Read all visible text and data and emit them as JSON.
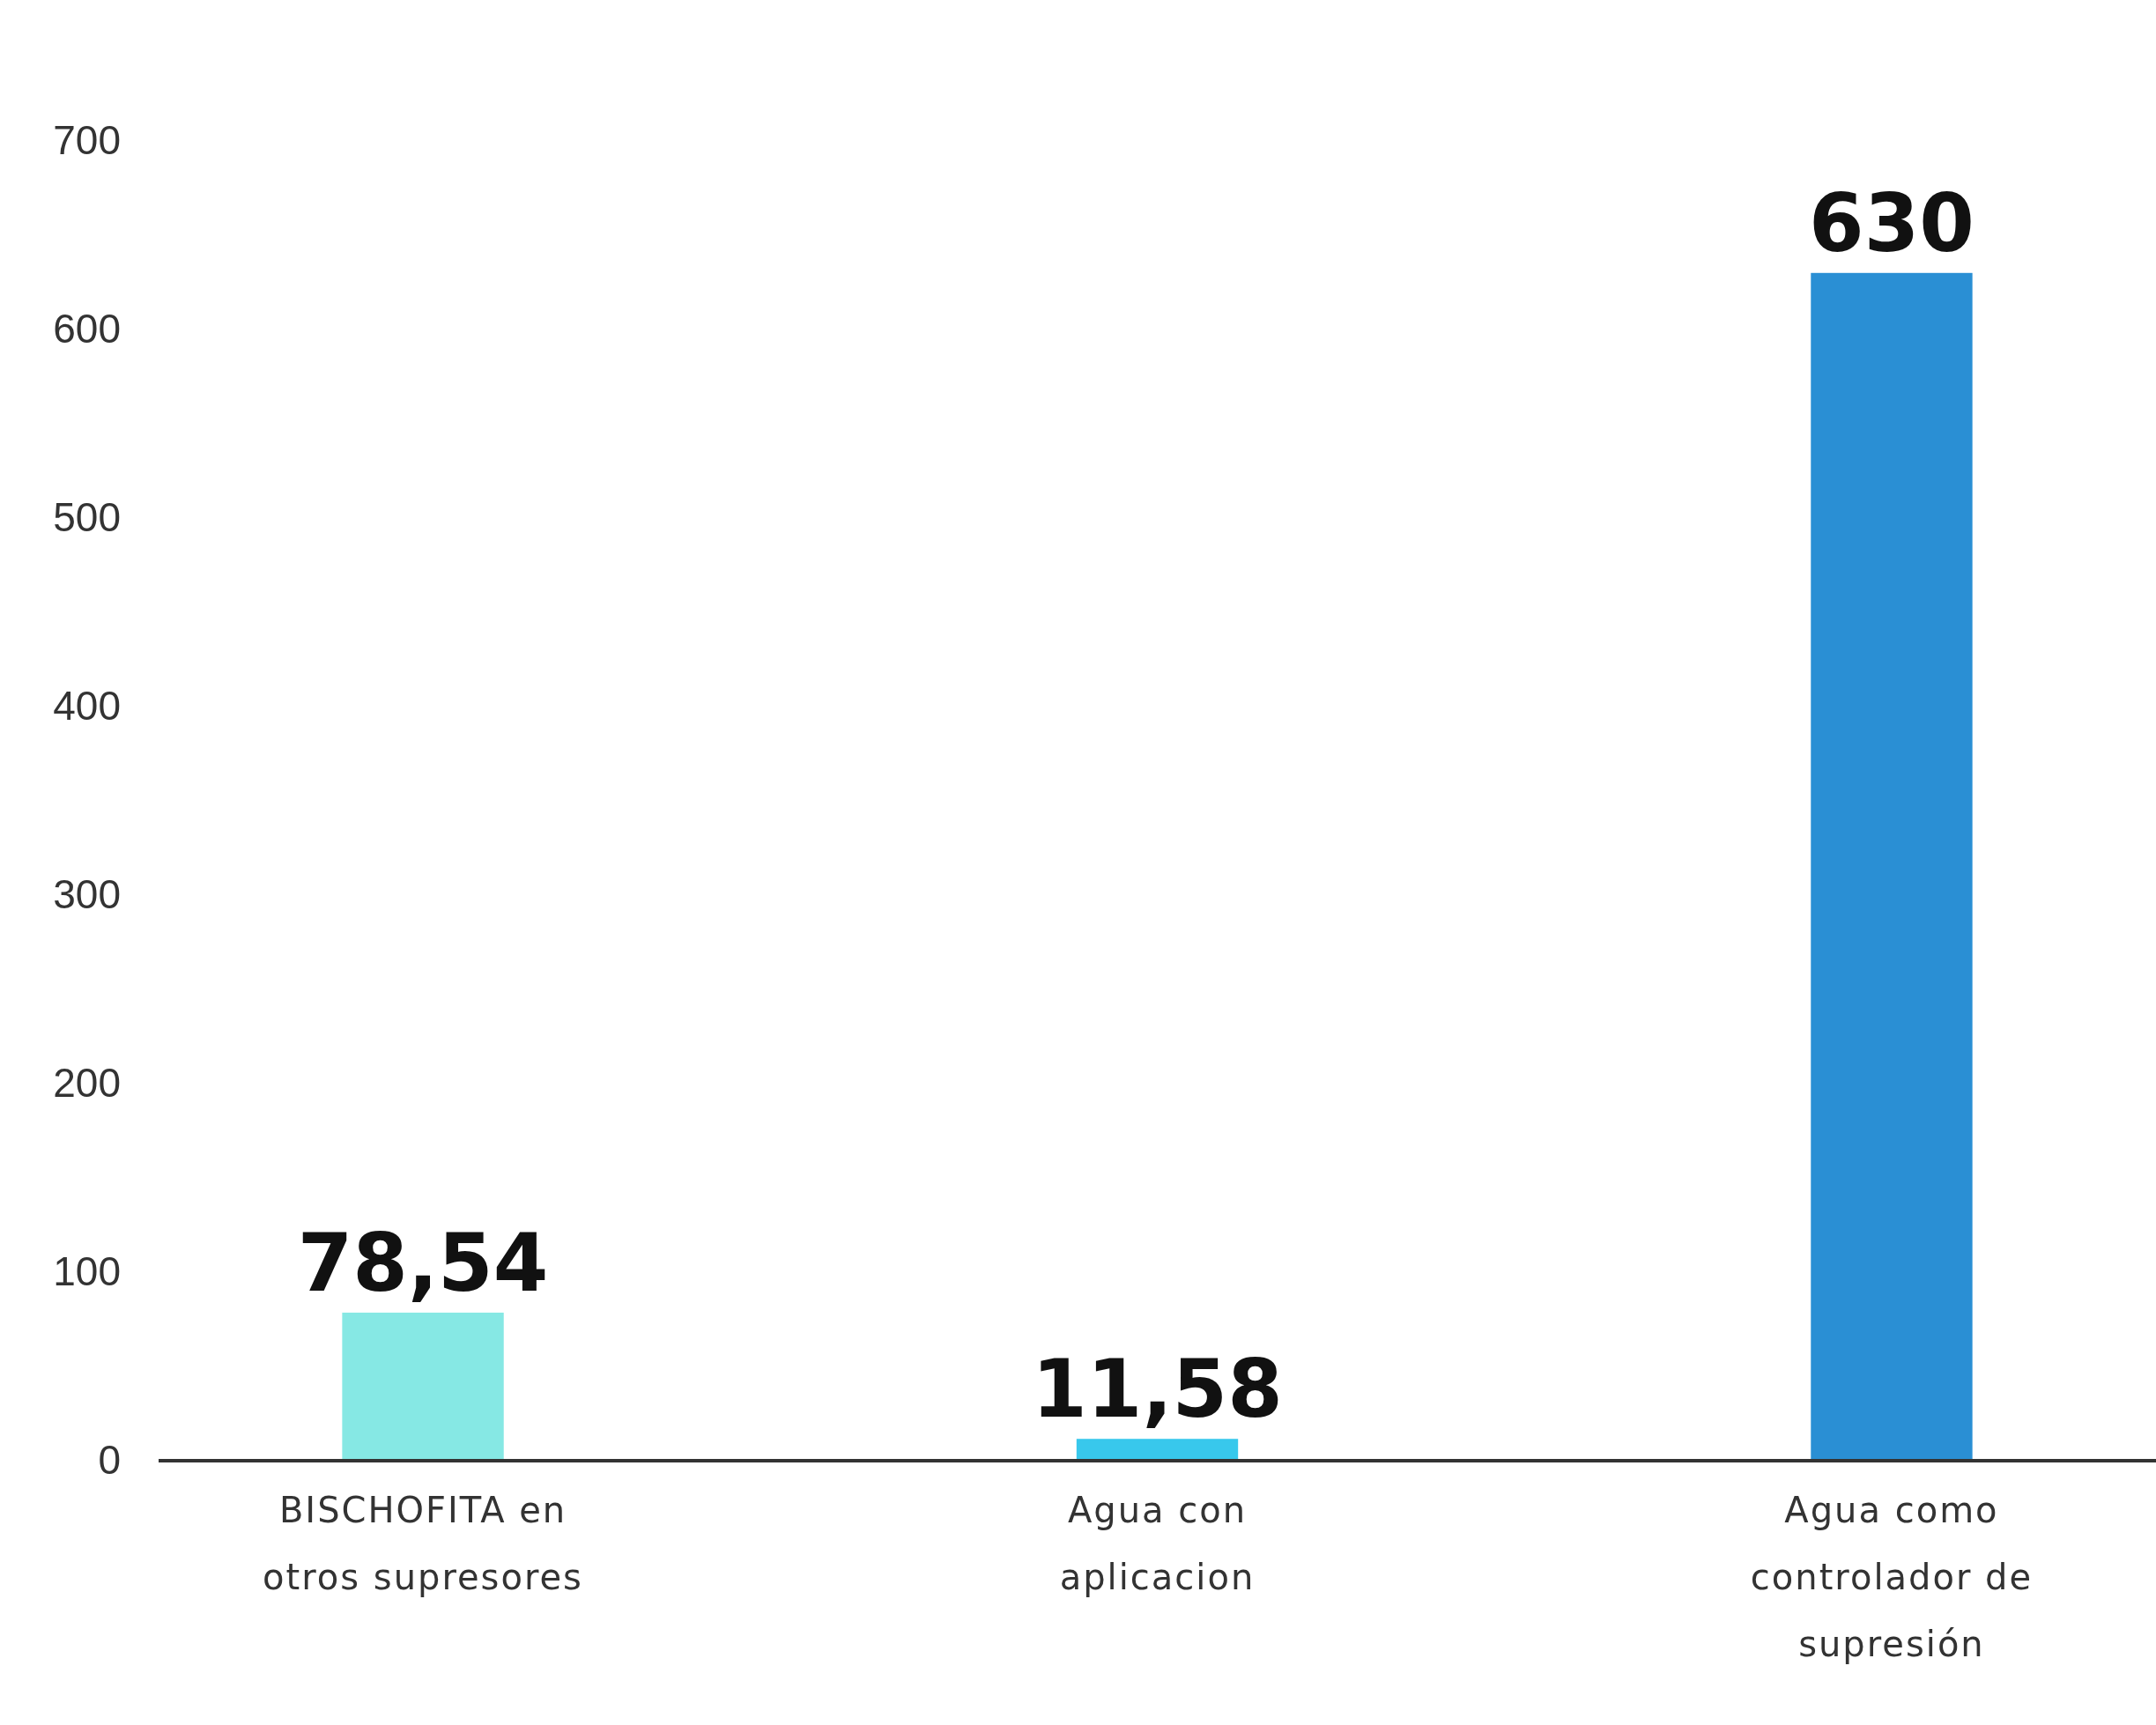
{
  "chart_data": {
    "type": "bar",
    "categories": [
      "BISCHOFITA en otros supresores",
      "Agua con aplicacion",
      "Agua como controlador de supresión"
    ],
    "values": [
      78.54,
      11.58,
      630
    ],
    "colors": [
      "#86e8e4",
      "#38c8ec",
      "#2a8fd4"
    ],
    "value_labels": [
      "78,54",
      "11,58",
      "630"
    ],
    "ylim": [
      0,
      700
    ],
    "yticks": [
      0,
      100,
      200,
      300,
      400,
      500,
      600,
      700
    ]
  }
}
